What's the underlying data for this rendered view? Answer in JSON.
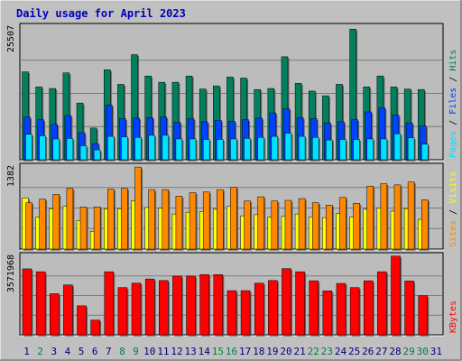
{
  "title": "Daily usage for April 2023",
  "colors": {
    "background": "#c0c0c0",
    "panel": "#bcbcbc",
    "title_text": "#0000c0",
    "grid": "#7a7a7a",
    "hits": "#00805c",
    "files": "#0040ff",
    "pages": "#00e0ff",
    "visits": "#ffff00",
    "sites": "#ff8800",
    "kbytes": "#ff0000",
    "weekday_label": "#000080",
    "weekend_label": "#008040"
  },
  "chart_data": [
    {
      "type": "bar",
      "panel": "hits-files-pages",
      "ymax_label": "25507",
      "ylim": [
        0,
        25507
      ],
      "series_labels": [
        "Pages",
        "Files",
        "Hits"
      ],
      "categories": [
        "1",
        "2",
        "3",
        "4",
        "5",
        "6",
        "7",
        "8",
        "9",
        "10",
        "11",
        "12",
        "13",
        "14",
        "15",
        "16",
        "17",
        "18",
        "19",
        "20",
        "21",
        "22",
        "23",
        "24",
        "25",
        "26",
        "27",
        "28",
        "29",
        "30",
        "31"
      ],
      "weekend": [
        false,
        true,
        false,
        false,
        false,
        false,
        false,
        true,
        true,
        false,
        false,
        false,
        false,
        false,
        true,
        true,
        false,
        false,
        false,
        false,
        false,
        true,
        true,
        false,
        false,
        false,
        false,
        false,
        true,
        true,
        false
      ],
      "series": [
        {
          "name": "Hits",
          "values": [
            16900,
            14000,
            13700,
            16700,
            10900,
            6100,
            17300,
            14500,
            20200,
            16100,
            14900,
            14900,
            16100,
            13600,
            14200,
            15900,
            15700,
            13500,
            13700,
            19800,
            14700,
            13200,
            12300,
            14500,
            25100,
            14000,
            16100,
            14000,
            13600,
            13500,
            0
          ]
        },
        {
          "name": "Files",
          "values": [
            8200,
            7700,
            6800,
            8500,
            5200,
            3100,
            10500,
            7900,
            8000,
            8100,
            8200,
            7200,
            7900,
            7300,
            7600,
            7400,
            7700,
            8000,
            9000,
            9800,
            8100,
            7900,
            7100,
            7300,
            7700,
            9200,
            10000,
            8600,
            7100,
            6500,
            0
          ]
        },
        {
          "name": "Pages",
          "values": [
            4900,
            4600,
            4000,
            4100,
            2700,
            1900,
            4500,
            4400,
            4300,
            4700,
            4700,
            4000,
            4000,
            3900,
            3900,
            4000,
            4100,
            4300,
            4500,
            5100,
            4500,
            4300,
            3800,
            3900,
            3900,
            4000,
            4000,
            5000,
            4200,
            3000,
            0
          ]
        }
      ]
    },
    {
      "type": "bar",
      "panel": "visits-sites",
      "ymax_label": "1382",
      "ylim": [
        0,
        1382
      ],
      "series_labels": [
        "Sites",
        "Visits"
      ],
      "categories": [
        "1",
        "2",
        "3",
        "4",
        "5",
        "6",
        "7",
        "8",
        "9",
        "10",
        "11",
        "12",
        "13",
        "14",
        "15",
        "16",
        "17",
        "18",
        "19",
        "20",
        "21",
        "22",
        "23",
        "24",
        "25",
        "26",
        "27",
        "28",
        "29",
        "30",
        "31"
      ],
      "series": [
        {
          "name": "Sites",
          "values": [
            780,
            840,
            920,
            1020,
            710,
            710,
            1010,
            1020,
            1380,
            1000,
            1000,
            890,
            950,
            960,
            1000,
            1040,
            810,
            880,
            810,
            820,
            850,
            780,
            740,
            870,
            770,
            1060,
            1100,
            1080,
            1130,
            830,
            0
          ]
        },
        {
          "name": "Visits",
          "values": [
            860,
            540,
            680,
            720,
            480,
            300,
            680,
            680,
            810,
            700,
            690,
            590,
            620,
            630,
            670,
            720,
            560,
            580,
            540,
            550,
            590,
            540,
            530,
            600,
            540,
            670,
            690,
            640,
            680,
            500,
            0
          ]
        }
      ]
    },
    {
      "type": "bar",
      "panel": "kbytes",
      "ymax_label": "3571968",
      "ylim": [
        0,
        3571968
      ],
      "series_labels": [
        "KBytes"
      ],
      "categories": [
        "1",
        "2",
        "3",
        "4",
        "5",
        "6",
        "7",
        "8",
        "9",
        "10",
        "11",
        "12",
        "13",
        "14",
        "15",
        "16",
        "17",
        "18",
        "19",
        "20",
        "21",
        "22",
        "23",
        "24",
        "25",
        "26",
        "27",
        "28",
        "29",
        "30",
        "31"
      ],
      "series": [
        {
          "name": "KBytes",
          "values": [
            3000000,
            2870000,
            1870000,
            2270000,
            1320000,
            670000,
            2870000,
            2150000,
            2350000,
            2540000,
            2470000,
            2670000,
            2670000,
            2740000,
            2740000,
            2010000,
            2010000,
            2350000,
            2470000,
            3010000,
            2870000,
            2460000,
            2000000,
            2340000,
            2150000,
            2460000,
            2870000,
            3580000,
            2450000,
            1780000,
            0
          ]
        }
      ]
    }
  ]
}
